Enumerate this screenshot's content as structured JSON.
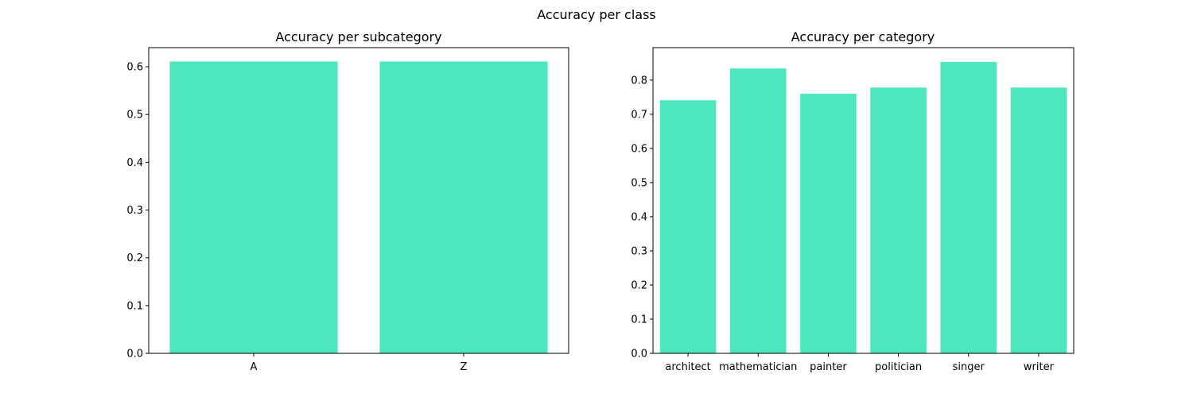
{
  "figure": {
    "suptitle": "Accuracy per class"
  },
  "colors": {
    "bar": "#4de6bd",
    "axis": "#000000",
    "background": "#ffffff"
  },
  "chart_data": [
    {
      "type": "bar",
      "title": "Accuracy per subcategory",
      "xlabel": "",
      "ylabel": "",
      "categories": [
        "A",
        "Z"
      ],
      "values": [
        0.611,
        0.611
      ],
      "ylim": [
        0,
        0.64
      ],
      "yticks": [
        0.0,
        0.1,
        0.2,
        0.3,
        0.4,
        0.5,
        0.6
      ],
      "grid": false
    },
    {
      "type": "bar",
      "title": "Accuracy per category",
      "xlabel": "",
      "ylabel": "",
      "categories": [
        "architect",
        "mathematician",
        "painter",
        "politician",
        "singer",
        "writer"
      ],
      "values": [
        0.741,
        0.834,
        0.76,
        0.778,
        0.853,
        0.778
      ],
      "ylim": [
        0,
        0.895
      ],
      "yticks": [
        0.0,
        0.1,
        0.2,
        0.3,
        0.4,
        0.5,
        0.6,
        0.7,
        0.8
      ],
      "grid": false
    }
  ]
}
